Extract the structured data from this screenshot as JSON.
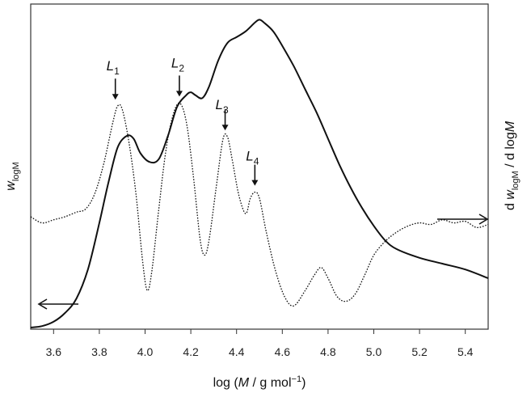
{
  "chart_data": {
    "type": "line",
    "title": "",
    "xlabel": "log (M / g mol⁻¹)",
    "ylabel_left": "w_logM",
    "ylabel_right": "d w_logM / d logM",
    "xlim": [
      3.5,
      5.5
    ],
    "ylim_left": [
      0,
      1.1
    ],
    "ylim_right": [
      -1.0,
      1.0
    ],
    "grid": false,
    "legend": "none",
    "x_ticks": [
      3.6,
      3.8,
      4.0,
      4.2,
      4.4,
      4.6,
      4.8,
      5.0,
      5.2,
      5.4
    ],
    "x_tick_labels": [
      "3.6",
      "3.8",
      "4.0",
      "4.2",
      "4.4",
      "4.6",
      "4.8",
      "5.0",
      "5.2",
      "5.4"
    ],
    "series": [
      {
        "style": "solid",
        "axis": "left",
        "x": [
          3.5,
          3.55,
          3.6,
          3.65,
          3.7,
          3.75,
          3.8,
          3.84,
          3.88,
          3.92,
          3.95,
          3.98,
          4.02,
          4.06,
          4.1,
          4.14,
          4.18,
          4.2,
          4.22,
          4.25,
          4.28,
          4.32,
          4.36,
          4.4,
          4.44,
          4.48,
          4.5,
          4.52,
          4.56,
          4.6,
          4.65,
          4.7,
          4.75,
          4.8,
          4.85,
          4.9,
          4.95,
          5.0,
          5.05,
          5.1,
          5.2,
          5.3,
          5.4,
          5.5
        ],
        "y": [
          0.0,
          0.005,
          0.02,
          0.05,
          0.1,
          0.2,
          0.36,
          0.5,
          0.62,
          0.66,
          0.65,
          0.6,
          0.57,
          0.58,
          0.66,
          0.76,
          0.8,
          0.81,
          0.8,
          0.79,
          0.83,
          0.92,
          0.98,
          1.0,
          1.02,
          1.05,
          1.06,
          1.05,
          1.02,
          0.97,
          0.9,
          0.82,
          0.74,
          0.65,
          0.56,
          0.48,
          0.41,
          0.35,
          0.3,
          0.27,
          0.24,
          0.22,
          0.2,
          0.17
        ]
      },
      {
        "style": "dotted",
        "axis": "right",
        "x": [
          3.5,
          3.55,
          3.6,
          3.65,
          3.7,
          3.74,
          3.78,
          3.82,
          3.86,
          3.88,
          3.9,
          3.93,
          3.96,
          3.99,
          4.01,
          4.03,
          4.06,
          4.09,
          4.12,
          4.15,
          4.18,
          4.21,
          4.24,
          4.26,
          4.28,
          4.31,
          4.34,
          4.36,
          4.38,
          4.41,
          4.44,
          4.46,
          4.48,
          4.5,
          4.53,
          4.57,
          4.61,
          4.65,
          4.7,
          4.74,
          4.77,
          4.8,
          4.84,
          4.88,
          4.92,
          4.96,
          5.0,
          5.05,
          5.1,
          5.15,
          5.2,
          5.25,
          5.3,
          5.35,
          5.4,
          5.45,
          5.5
        ],
        "y": [
          0.0,
          -0.04,
          -0.02,
          0.0,
          0.03,
          0.05,
          0.15,
          0.35,
          0.62,
          0.72,
          0.7,
          0.48,
          0.15,
          -0.3,
          -0.48,
          -0.35,
          0.05,
          0.42,
          0.65,
          0.74,
          0.62,
          0.28,
          -0.14,
          -0.25,
          -0.15,
          0.18,
          0.5,
          0.52,
          0.38,
          0.14,
          0.02,
          0.12,
          0.16,
          0.12,
          -0.1,
          -0.35,
          -0.52,
          -0.58,
          -0.48,
          -0.38,
          -0.33,
          -0.4,
          -0.52,
          -0.55,
          -0.5,
          -0.38,
          -0.25,
          -0.16,
          -0.1,
          -0.06,
          -0.04,
          -0.05,
          -0.02,
          -0.04,
          -0.03,
          -0.07,
          -0.05
        ]
      }
    ],
    "annotations": [
      {
        "label": "L",
        "sub": "1",
        "x": 3.87
      },
      {
        "label": "L",
        "sub": "2",
        "x": 4.15
      },
      {
        "label": "L",
        "sub": "3",
        "x": 4.35
      },
      {
        "label": "L",
        "sub": "4",
        "x": 4.48
      }
    ]
  }
}
